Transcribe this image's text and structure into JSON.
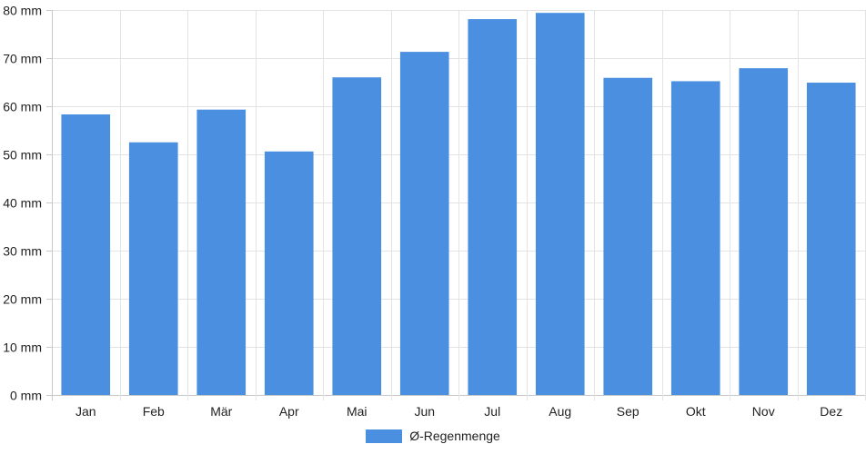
{
  "chart_data": {
    "type": "bar",
    "categories": [
      "Jan",
      "Feb",
      "Mär",
      "Apr",
      "Mai",
      "Jun",
      "Jul",
      "Aug",
      "Sep",
      "Okt",
      "Nov",
      "Dez"
    ],
    "series": [
      {
        "name": "Ø-Regenmenge",
        "values": [
          58.3,
          52.5,
          59.3,
          50.6,
          66.0,
          71.3,
          78.1,
          79.4,
          65.9,
          65.2,
          67.9,
          64.9
        ]
      }
    ],
    "ylim": [
      0,
      80
    ],
    "yticks": [
      0,
      10,
      20,
      30,
      40,
      50,
      60,
      70,
      80
    ],
    "ytick_labels": [
      "0 mm",
      "10 mm",
      "20 mm",
      "30 mm",
      "40 mm",
      "50 mm",
      "60 mm",
      "70 mm",
      "80 mm"
    ],
    "grid": true,
    "legend_position": "bottom",
    "bar_color": "#4a8fe0",
    "grid_color": "#e3e3e3",
    "axis_color": "#c8c8c8"
  }
}
